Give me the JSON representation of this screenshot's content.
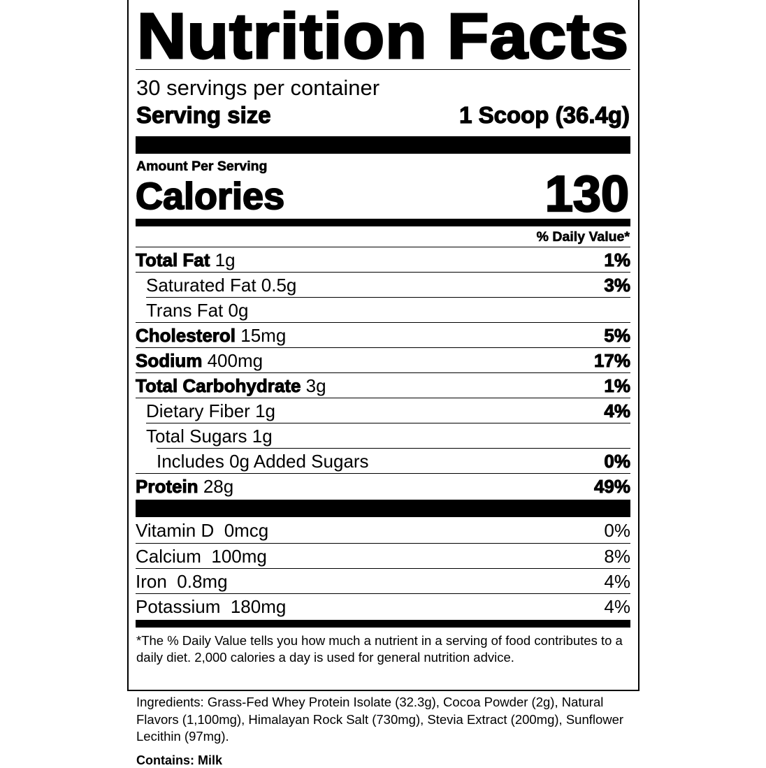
{
  "title": "Nutrition Facts",
  "servings_per_container": "30 servings per container",
  "serving_size_label": "Serving size",
  "serving_size_value": "1 Scoop (36.4g)",
  "amount_per_serving": "Amount Per Serving",
  "calories_label": "Calories",
  "calories_value": "130",
  "daily_value_header": "% Daily Value*",
  "nutrients": [
    {
      "name": "Total Fat",
      "amount": "1g",
      "dv": "1%"
    },
    {
      "name": "Saturated Fat",
      "amount": "0.5g",
      "dv": "3%"
    },
    {
      "name": "Trans Fat",
      "amount": "0g",
      "dv": ""
    },
    {
      "name": "Cholesterol",
      "amount": "15mg",
      "dv": "5%"
    },
    {
      "name": "Sodium",
      "amount": "400mg",
      "dv": "17%"
    },
    {
      "name": "Total Carbohydrate",
      "amount": "3g",
      "dv": "1%"
    },
    {
      "name": "Dietary Fiber",
      "amount": "1g",
      "dv": "4%"
    },
    {
      "name": "Total Sugars",
      "amount": "1g",
      "dv": ""
    },
    {
      "name": "Includes 0g Added Sugars",
      "amount": "",
      "dv": "0%"
    },
    {
      "name": "Protein",
      "amount": "28g",
      "dv": "49%"
    }
  ],
  "vitamins": [
    {
      "name": "Vitamin D",
      "amount": "0mcg",
      "dv": "0%"
    },
    {
      "name": "Calcium",
      "amount": "100mg",
      "dv": "8%"
    },
    {
      "name": "Iron",
      "amount": "0.8mg",
      "dv": "4%"
    },
    {
      "name": "Potassium",
      "amount": "180mg",
      "dv": "4%"
    }
  ],
  "footnote": "*The % Daily Value tells you how much a nutrient in a serving of food contributes to a daily diet. 2,000 calories a day is used for general nutrition advice.",
  "ingredients": "Ingredients: Grass-Fed Whey Protein Isolate (32.3g), Cocoa Powder (2g), Natural Flavors (1,100mg), Himalayan Rock Salt (730mg), Stevia Extract (200mg), Sunflower Lecithin (97mg).",
  "contains": "Contains: Milk"
}
